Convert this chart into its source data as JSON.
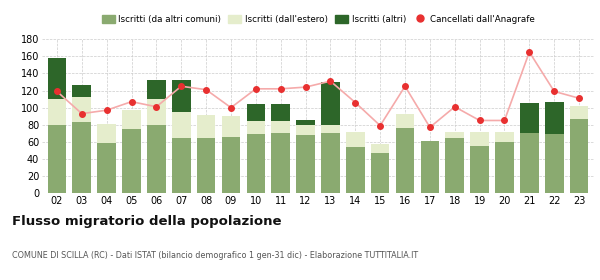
{
  "years": [
    "02",
    "03",
    "04",
    "05",
    "06",
    "07",
    "08",
    "09",
    "10",
    "11",
    "12",
    "13",
    "14",
    "15",
    "16",
    "17",
    "18",
    "19",
    "20",
    "21",
    "22",
    "23"
  ],
  "iscritti_altri_comuni": [
    80,
    83,
    59,
    75,
    80,
    65,
    64,
    66,
    69,
    70,
    68,
    70,
    54,
    47,
    76,
    61,
    64,
    55,
    60,
    70,
    69,
    87
  ],
  "iscritti_estero": [
    30,
    30,
    22,
    22,
    30,
    30,
    27,
    24,
    15,
    14,
    12,
    10,
    17,
    10,
    17,
    0,
    8,
    16,
    12,
    0,
    0,
    15
  ],
  "iscritti_altri": [
    48,
    14,
    0,
    0,
    22,
    37,
    0,
    0,
    20,
    20,
    5,
    50,
    0,
    0,
    0,
    0,
    0,
    0,
    0,
    35,
    38,
    0
  ],
  "cancellati": [
    119,
    93,
    97,
    107,
    101,
    125,
    121,
    100,
    122,
    122,
    124,
    131,
    106,
    79,
    125,
    77,
    101,
    85,
    85,
    165,
    119,
    111
  ],
  "color_altri_comuni": "#8aaa70",
  "color_estero": "#e5edcc",
  "color_altri": "#2d6629",
  "color_cancellati": "#e83030",
  "color_line": "#f5aaaa",
  "ylim": [
    0,
    180
  ],
  "yticks": [
    0,
    20,
    40,
    60,
    80,
    100,
    120,
    140,
    160,
    180
  ],
  "title": "Flusso migratorio della popolazione",
  "subtitle": "COMUNE DI SCILLA (RC) - Dati ISTAT (bilancio demografico 1 gen-31 dic) - Elaborazione TUTTITALIA.IT",
  "legend_labels": [
    "Iscritti (da altri comuni)",
    "Iscritti (dall'estero)",
    "Iscritti (altri)",
    "Cancellati dall'Anagrafe"
  ],
  "background_color": "#ffffff",
  "grid_color": "#cccccc"
}
